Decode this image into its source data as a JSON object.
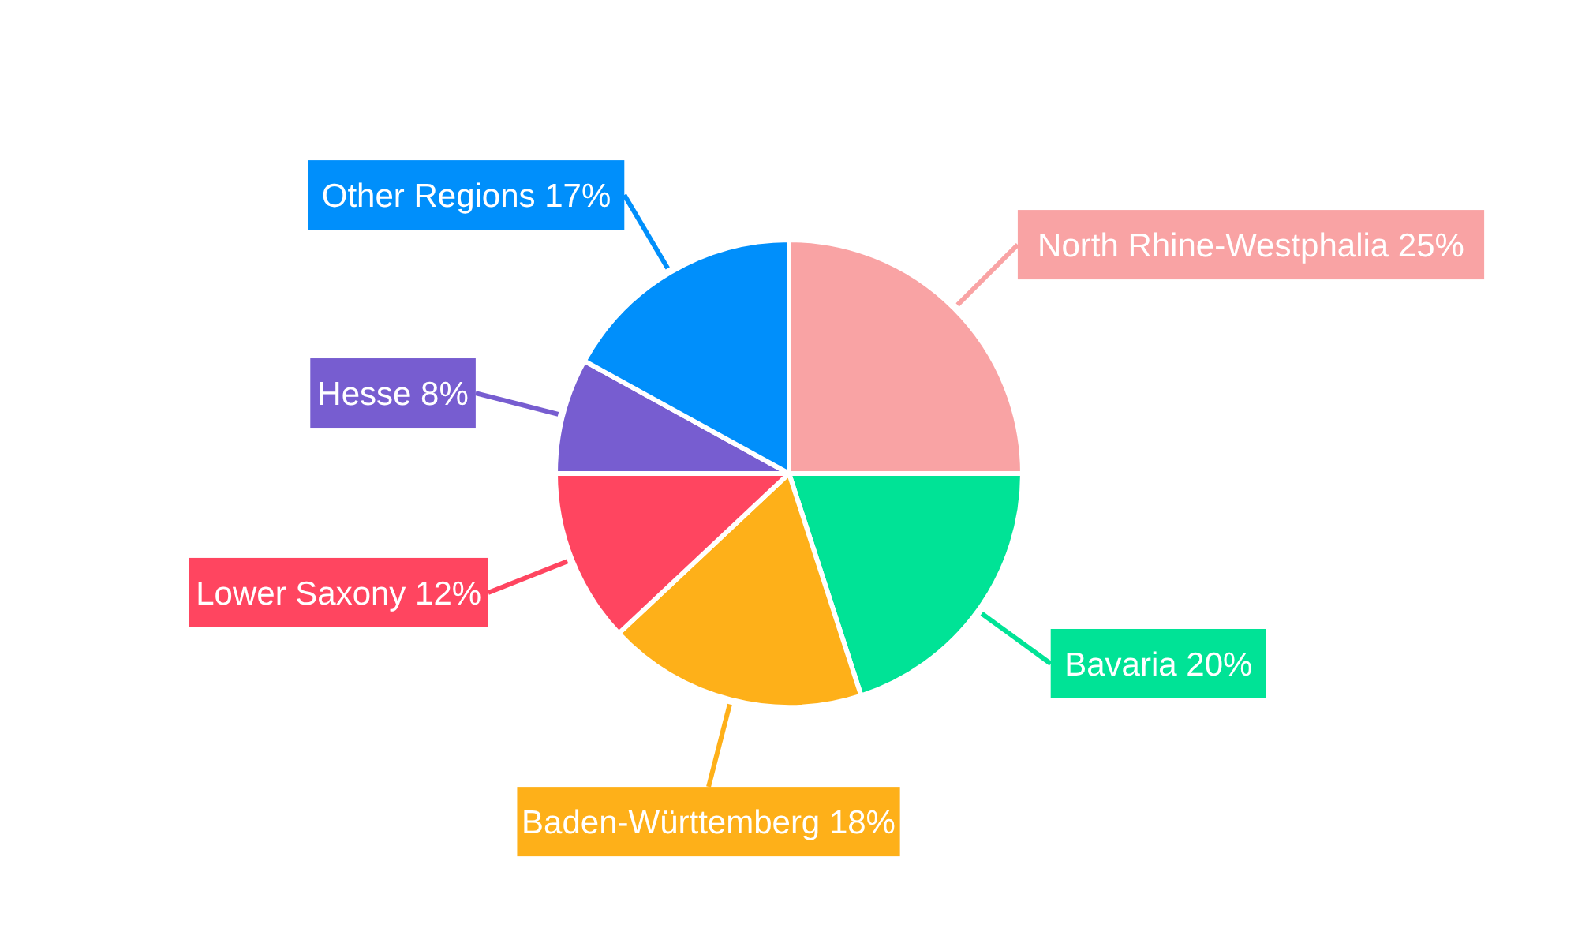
{
  "chart_data": {
    "type": "pie",
    "categories": [
      "North Rhine-Westphalia",
      "Bavaria",
      "Baden-Württemberg",
      "Lower Saxony",
      "Hesse",
      "Other Regions"
    ],
    "values": [
      25,
      20,
      18,
      12,
      8,
      17
    ],
    "value_labels": [
      "25%",
      "20%",
      "18%",
      "12%",
      "8%",
      "17%"
    ],
    "colors": [
      "#f9a3a4",
      "#00e396",
      "#feb019",
      "#ff4560",
      "#775dd0",
      "#008ffb"
    ]
  }
}
